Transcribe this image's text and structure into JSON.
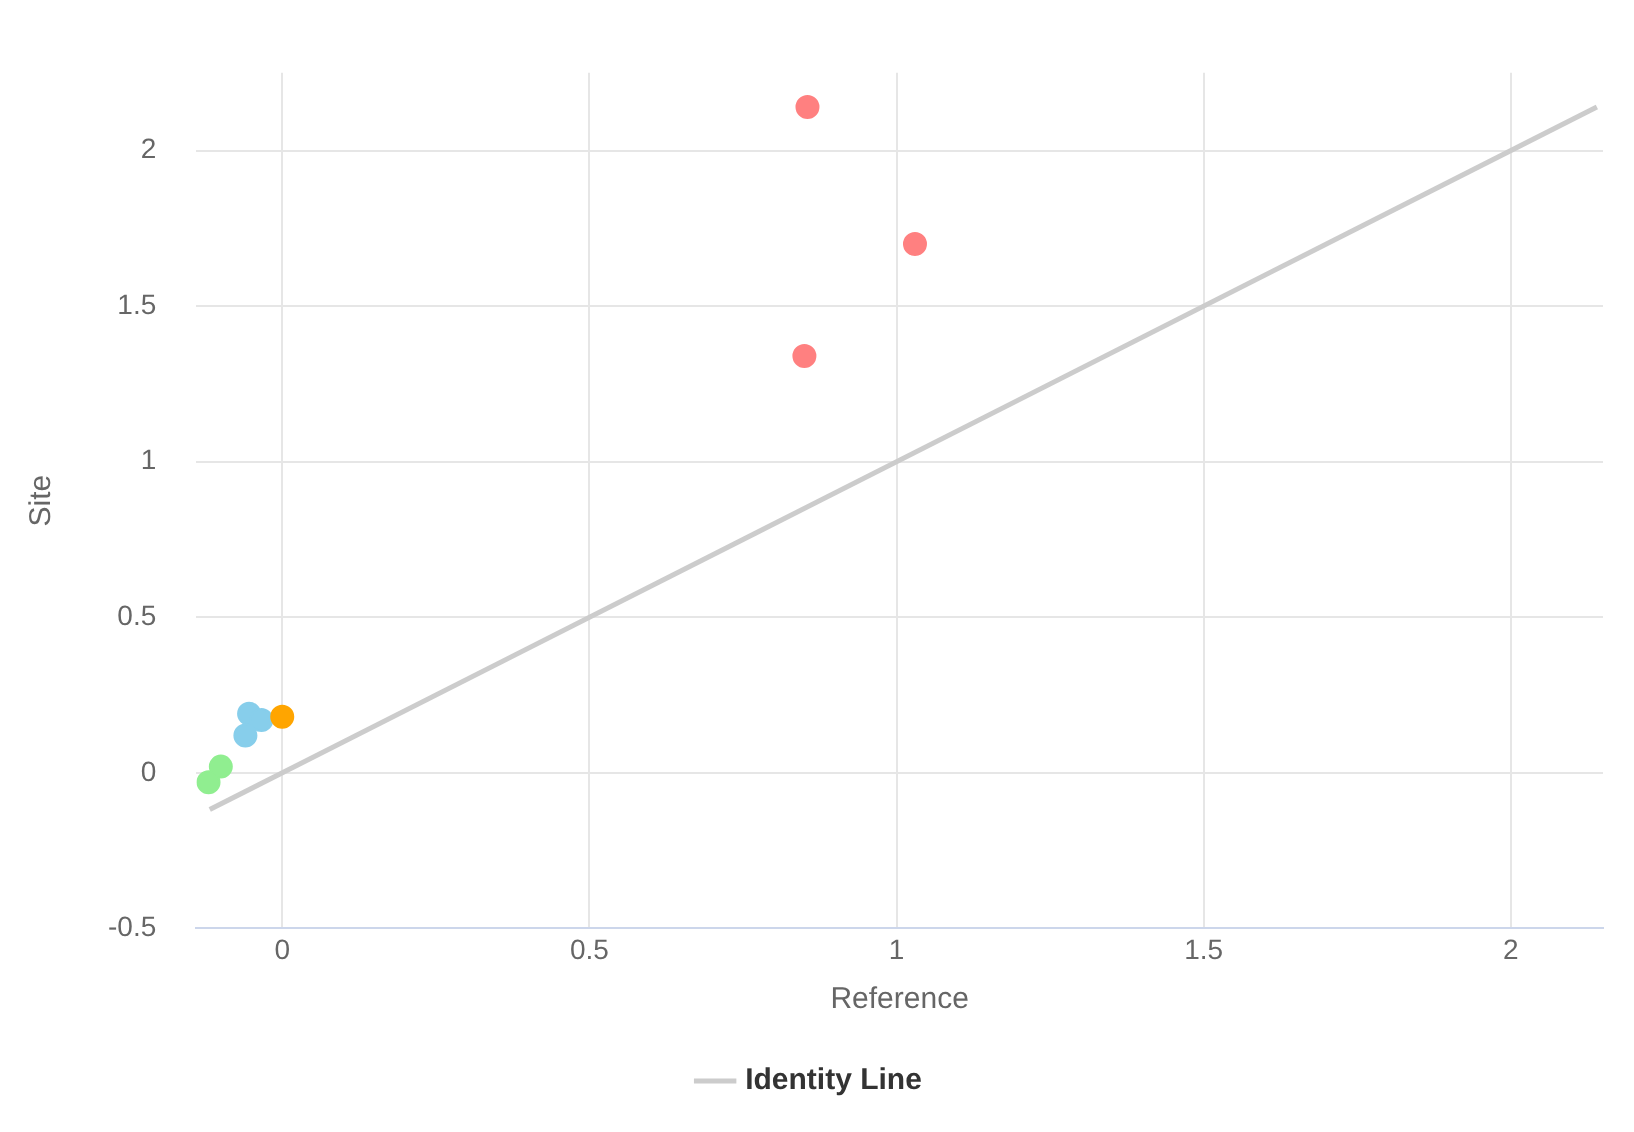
{
  "chart_data": {
    "type": "scatter",
    "xlabel": "Reference",
    "ylabel": "Site",
    "xlim": [
      -0.14,
      2.15
    ],
    "ylim": [
      -0.5,
      2.25
    ],
    "xticks": [
      0,
      0.5,
      1,
      1.5,
      2
    ],
    "yticks": [
      -0.5,
      0,
      0.5,
      1,
      1.5,
      2
    ],
    "grid": true,
    "legend": "bottom",
    "marker": "circle",
    "series": [
      {
        "color": "#ff8080",
        "x": [
          0.855,
          1.03,
          0.85
        ],
        "values": [
          2.14,
          1.7,
          1.34
        ]
      },
      {
        "color": "#ffa500",
        "x": [
          0
        ],
        "values": [
          0.18
        ]
      },
      {
        "color": "#87ceeb",
        "x": [
          -0.054,
          -0.034,
          -0.06
        ],
        "values": [
          0.19,
          0.17,
          0.12
        ]
      },
      {
        "color": "#90ee90",
        "x": [
          -0.1,
          -0.12
        ],
        "values": [
          0.02,
          -0.03
        ]
      },
      {
        "type": "line",
        "name": "Identity Line",
        "color": "#cccccc",
        "line_style": "solid",
        "marker": "none",
        "x": [
          -0.118,
          2.14
        ],
        "values": [
          -0.118,
          2.14
        ]
      }
    ]
  }
}
